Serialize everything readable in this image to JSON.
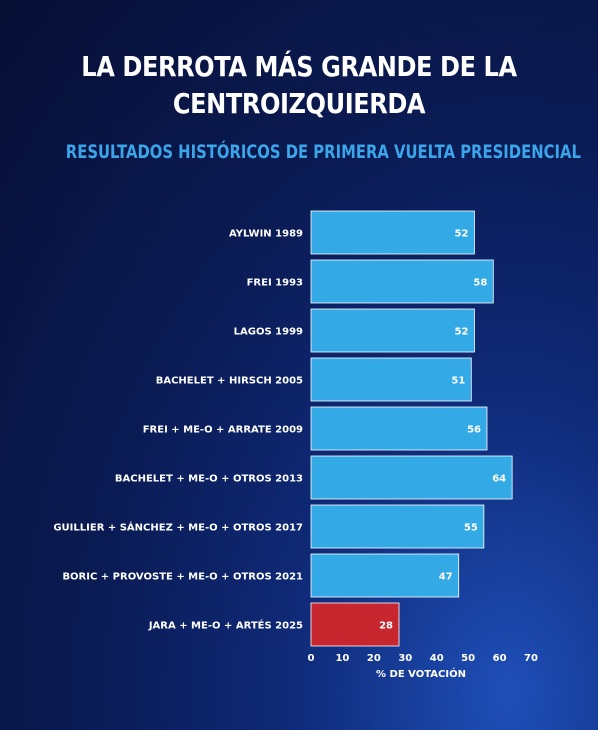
{
  "header": {
    "title_line1": "LA DERROTA MÁS GRANDE DE LA",
    "title_line2": "CENTROIZQUIERDA",
    "subtitle": "RESULTADOS HISTÓRICOS DE PRIMERA VUELTA PRESIDENCIAL"
  },
  "colors": {
    "bar": "#33a9e6",
    "highlight": "#c8262f",
    "bar_border": "#ffffff",
    "text": "#ffffff",
    "subtitle": "#3aa5e8"
  },
  "chart_data": {
    "type": "bar",
    "orientation": "horizontal",
    "title": "LA DERROTA MÁS GRANDE DE LA CENTROIZQUIERDA",
    "subtitle": "RESULTADOS HISTÓRICOS DE PRIMERA VUELTA PRESIDENCIAL",
    "categories": [
      "AYLWIN 1989",
      "FREI 1993",
      "LAGOS 1999",
      "BACHELET + HIRSCH 2005",
      "FREI + ME-O + ARRATE 2009",
      "BACHELET + ME-O + OTROS 2013",
      "GUILLIER + SÁNCHEZ + ME-O + OTROS 2017",
      "BORIC + PROVOSTE + ME-O + OTROS 2021",
      "JARA + ME-O + ARTÉS 2025"
    ],
    "values": [
      52,
      58,
      52,
      51,
      56,
      64,
      55,
      47,
      28
    ],
    "highlight_index": 8,
    "xlabel": "% DE VOTACIÓN",
    "ylabel": "",
    "xlim": [
      0,
      70
    ],
    "xticks": [
      0,
      10,
      20,
      30,
      40,
      50,
      60,
      70
    ],
    "grid": false,
    "legend": "none",
    "data_labels": "inside-end"
  }
}
